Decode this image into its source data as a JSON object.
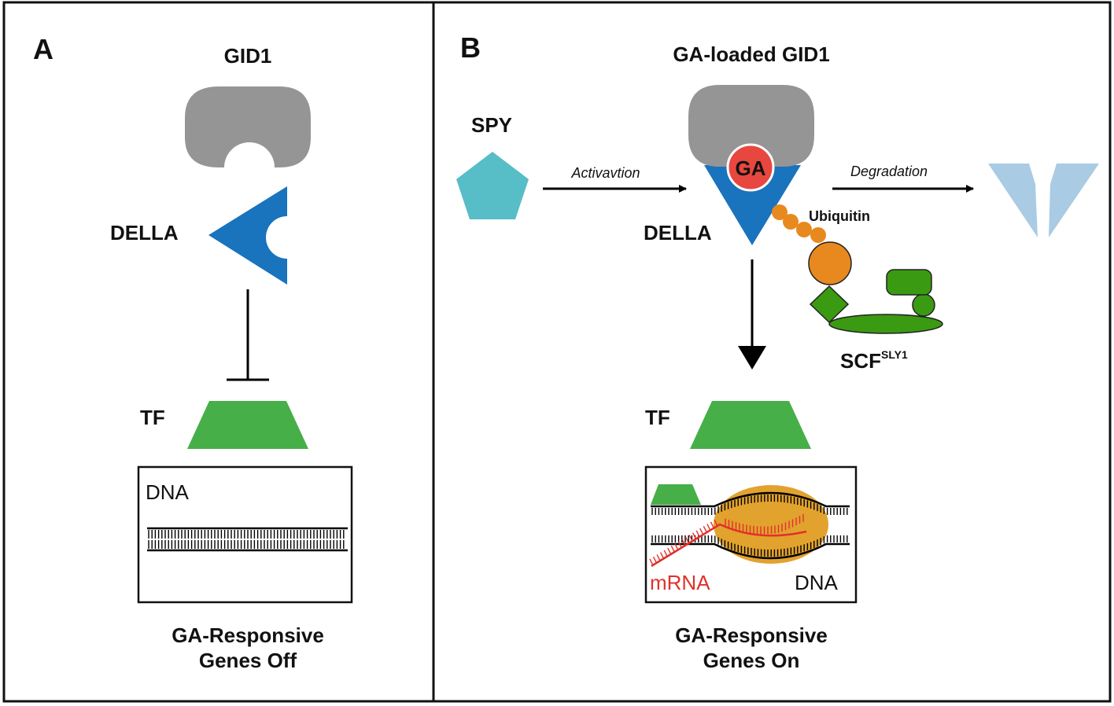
{
  "colors": {
    "gid1": "#959595",
    "della": "#1a73bd",
    "della_faded": "#a9cbe3",
    "tf": "#46af48",
    "spy": "#57bdc7",
    "ga": "#e8473f",
    "ubiquitin": "#e8891f",
    "scf": "#3a9a12",
    "polymerase": "#e2a22e",
    "mrna": "#e0312b"
  },
  "panel_a": {
    "letter": "A",
    "gid1_label": "GID1",
    "della_label": "DELLA",
    "tf_label": "TF",
    "dna_label": "DNA",
    "caption_line1": "GA-Responsive",
    "caption_line2": "Genes Off"
  },
  "panel_b": {
    "letter": "B",
    "gid1_label": "GA-loaded GID1",
    "spy_label": "SPY",
    "activation_label": "Activavtion",
    "ga_label": "GA",
    "degradation_label": "Degradation",
    "ubiquitin_label": "Ubiquitin",
    "della_label": "DELLA",
    "scf_label": "SCF",
    "scf_superscript": "SLY1",
    "tf_label": "TF",
    "mrna_label": "mRNA",
    "dna_label": "DNA",
    "caption_line1": "GA-Responsive",
    "caption_line2": "Genes On"
  }
}
